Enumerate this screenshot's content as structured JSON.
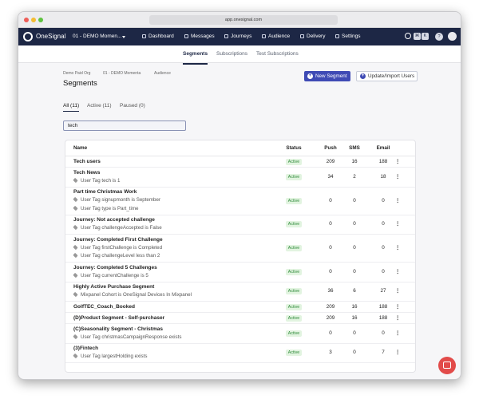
{
  "browser": {
    "url": "app.onesignal.com"
  },
  "nav": {
    "brand": "OneSignal",
    "app": "01 - DEMO Momen...",
    "items": [
      "Dashboard",
      "Messages",
      "Journeys",
      "Audience",
      "Delivery",
      "Settings"
    ],
    "shortcut": [
      "⌘",
      "K"
    ],
    "help": "?"
  },
  "tabs": [
    "Segments",
    "Subscriptions",
    "Test Subscriptions"
  ],
  "breadcrumb": [
    "Demo Paid Org",
    "01 - DEMO Momenta",
    "Audience"
  ],
  "page": {
    "title": "Segments",
    "buttons": [
      "New Segment",
      "Update/Import Users"
    ]
  },
  "filters": [
    "All (11)",
    "Active (11)",
    "Paused (0)"
  ],
  "search": "tech",
  "table": {
    "columns": [
      "Name",
      "Status",
      "Push",
      "SMS",
      "Email"
    ],
    "rows": [
      {
        "name": "Tech users",
        "status": "Active",
        "filters": [],
        "push": 209,
        "sms": 16,
        "email": 188
      },
      {
        "name": "Tech News",
        "status": "Active",
        "filters": [
          "User Tag tech is 1"
        ],
        "push": 34,
        "sms": 2,
        "email": 18
      },
      {
        "name": "Part time Christmas Work",
        "status": "Active",
        "filters": [
          "User Tag signupmonth is September",
          "User Tag type is Part_time"
        ],
        "push": 0,
        "sms": 0,
        "email": 0
      },
      {
        "name": "Journey: Not accepted challenge",
        "status": "Active",
        "filters": [
          "User Tag challengeAccepted is False"
        ],
        "push": 0,
        "sms": 0,
        "email": 0
      },
      {
        "name": "Journey: Completed First Challenge",
        "status": "Active",
        "filters": [
          "User Tag firstChallenge is Completed",
          "User Tag challengeLevel less than 2"
        ],
        "push": 0,
        "sms": 0,
        "email": 0
      },
      {
        "name": "Journey: Completed 5 Challenges",
        "status": "Active",
        "filters": [
          "User Tag currentChallenge is 5"
        ],
        "push": 0,
        "sms": 0,
        "email": 0
      },
      {
        "name": "Highly Active Purchase Segment",
        "status": "Active",
        "filters": [
          "Mixpanel Cohort is OneSignal Devices In Mixpanel"
        ],
        "push": 36,
        "sms": 6,
        "email": 27
      },
      {
        "name": "GolfTEC_Coach_Booked",
        "status": "Active",
        "filters": [],
        "push": 209,
        "sms": 16,
        "email": 188
      },
      {
        "name": "(D)Product Segment - Self-purchaser",
        "status": "Active",
        "filters": [],
        "push": 209,
        "sms": 16,
        "email": 188
      },
      {
        "name": "(C)Seasonality Segment - Christmas",
        "status": "Active",
        "filters": [
          "User Tag christmasCampaignResponse exists"
        ],
        "push": 0,
        "sms": 0,
        "email": 0
      },
      {
        "name": "(3)Fintech",
        "status": "Active",
        "filters": [
          "User Tag largestHolding exists"
        ],
        "push": 3,
        "sms": 0,
        "email": 7
      }
    ]
  }
}
